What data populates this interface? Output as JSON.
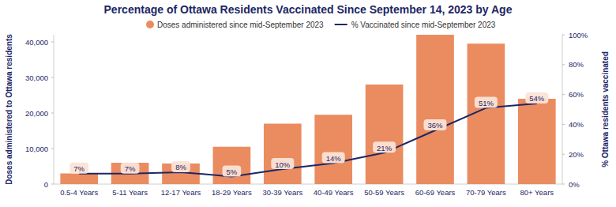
{
  "chart_data": {
    "type": "bar",
    "title": "Percentage of Ottawa Residents Vaccinated Since September 14, 2023 by Age",
    "y_label": "Doses administered to Ottawa residents",
    "y2_label": "% Ottawa residents vaccinated",
    "categories": [
      "0.5-4 Years",
      "5-11 Years",
      "12-17 Years",
      "18-29 Years",
      "30-39 Years",
      "40-49 Years",
      "50-59 Years",
      "60-69 Years",
      "70-79 Years",
      "80+ Years"
    ],
    "series": [
      {
        "name": "Doses administered since mid-September 2023",
        "type": "bar",
        "color": "#ea8c60",
        "values": [
          3000,
          6000,
          5800,
          10500,
          17000,
          19500,
          28000,
          42000,
          39500,
          24000
        ]
      },
      {
        "name": "% Vaccinated since mid-September 2023",
        "type": "line",
        "color": "#1d2766",
        "axis": "y2",
        "values": [
          7,
          7,
          8,
          5,
          10,
          14,
          21,
          36,
          51,
          54
        ],
        "value_labels": [
          "7%",
          "7%",
          "8%",
          "5%",
          "10%",
          "14%",
          "21%",
          "36%",
          "51%",
          "54%"
        ]
      }
    ],
    "ylim": [
      0,
      42000
    ],
    "yticks": [
      0,
      {
        "value": 10000,
        "label": "10,000"
      },
      {
        "value": 20000,
        "label": "20,000"
      },
      {
        "value": 30000,
        "label": "30,000"
      },
      {
        "value": 40000,
        "label": "40,000"
      }
    ],
    "y2lim": [
      0,
      100
    ],
    "y2ticks": [
      {
        "value": 0,
        "label": "0%"
      },
      {
        "value": 20,
        "label": "20%"
      },
      {
        "value": 40,
        "label": "40%"
      },
      {
        "value": 60,
        "label": "60%"
      },
      {
        "value": 80,
        "label": "80%"
      },
      {
        "value": 100,
        "label": "100%"
      }
    ],
    "grid": false,
    "legend": "top",
    "data_labels": true
  }
}
